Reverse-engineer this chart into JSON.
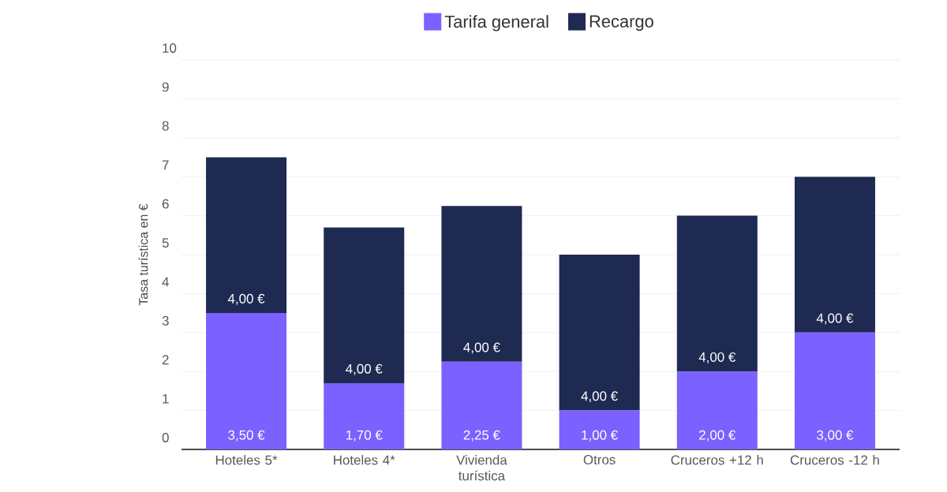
{
  "chart_data": {
    "type": "bar",
    "stacked": true,
    "ylabel": "Tasa turística en €",
    "categories": [
      "Hoteles 5*",
      "Hoteles 4*",
      "Vivienda turística",
      "Otros",
      "Cruceros +12 h",
      "Cruceros -12 h"
    ],
    "series": [
      {
        "name": "Tarifa general",
        "color": "#7b61ff",
        "values": [
          3.5,
          1.7,
          2.25,
          1.0,
          2.0,
          3.0
        ],
        "value_labels": [
          "3,50 €",
          "1,70 €",
          "2,25 €",
          "1,00 €",
          "2,00 €",
          "3,00 €"
        ]
      },
      {
        "name": "Recargo",
        "color": "#1f2a52",
        "values": [
          4.0,
          4.0,
          4.0,
          4.0,
          4.0,
          4.0
        ],
        "value_labels": [
          "4,00 €",
          "4,00 €",
          "4,00 €",
          "4,00 €",
          "4,00 €",
          "4,00 €"
        ]
      }
    ],
    "ylim": [
      0,
      10
    ],
    "yticks": [
      0,
      1,
      2,
      3,
      4,
      5,
      6,
      7,
      8,
      9,
      10
    ],
    "grid": "y",
    "legend": "top"
  }
}
